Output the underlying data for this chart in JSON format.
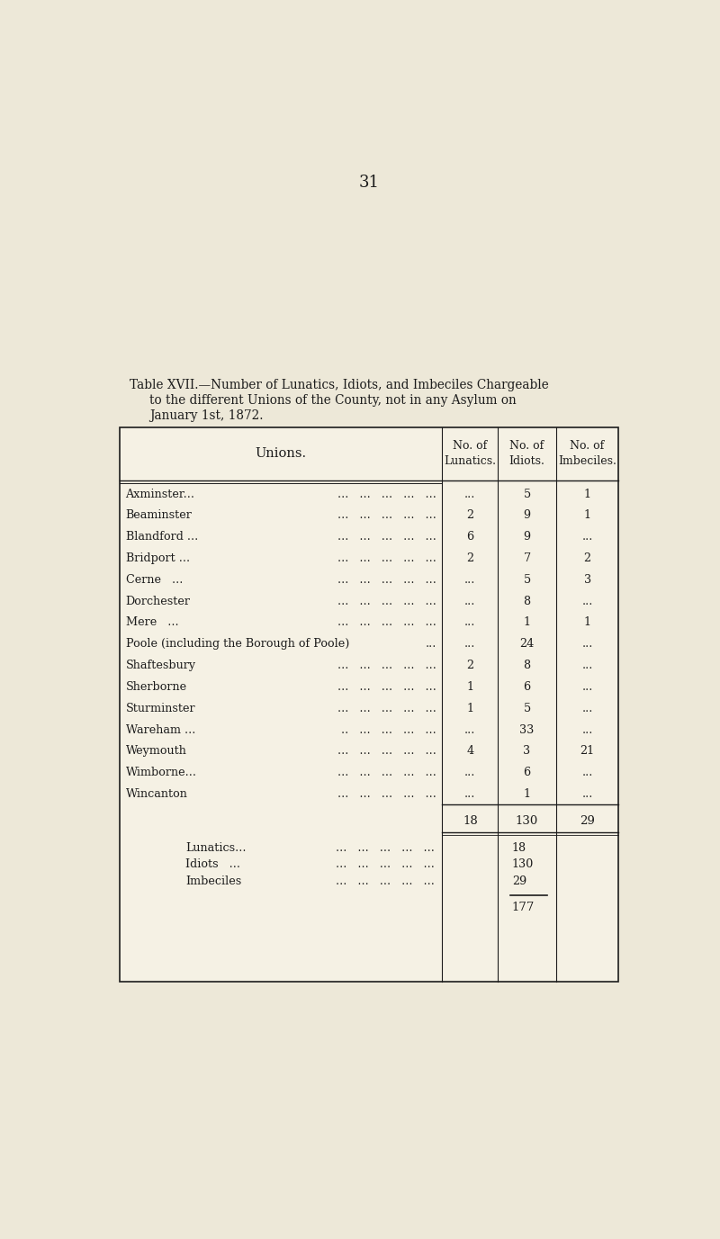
{
  "page_number": "31",
  "title_line1": "Table XVII.—Number of Lunatics, Idiots, and Imbeciles Chargeable",
  "title_line2": "to the different Unions of the County, not in any Asylum on",
  "title_line3": "January 1st, 1872.",
  "col_header_union": "Unions.",
  "col_header_lunatics": "No. of\nLunatics.",
  "col_header_idiots": "No. of\nIdiots.",
  "col_header_imbeciles": "No. of\nImbeciles.",
  "rows": [
    {
      "union": "Axminster...",
      "trail": "...   ...   ...   ...   ...",
      "lunatics": "...",
      "idiots": "5",
      "imbeciles": "1"
    },
    {
      "union": "Beaminster",
      "trail": "...   ...   ...   ...   ...",
      "lunatics": "2",
      "idiots": "9",
      "imbeciles": "1"
    },
    {
      "union": "Blandford ...",
      "trail": "...   ...   ...   ...   ...",
      "lunatics": "6",
      "idiots": "9",
      "imbeciles": "..."
    },
    {
      "union": "Bridport ...",
      "trail": "...   ...   ...   ...   ...",
      "lunatics": "2",
      "idiots": "7",
      "imbeciles": "2"
    },
    {
      "union": "Cerne   ...",
      "trail": "...   ...   ...   ...   ...",
      "lunatics": "...",
      "idiots": "5",
      "imbeciles": "3"
    },
    {
      "union": "Dorchester",
      "trail": "...   ...   ...   ...   ...",
      "lunatics": "...",
      "idiots": "8",
      "imbeciles": "..."
    },
    {
      "union": "Mere   ...",
      "trail": "...   ...   ...   ...   ...",
      "lunatics": "...",
      "idiots": "1",
      "imbeciles": "1"
    },
    {
      "union": "Poole (including the Borough of Poole)",
      "trail": "...",
      "lunatics": "...",
      "idiots": "24",
      "imbeciles": "..."
    },
    {
      "union": "Shaftesbury",
      "trail": "...   ...   ...   ...   ...",
      "lunatics": "2",
      "idiots": "8",
      "imbeciles": "..."
    },
    {
      "union": "Sherborne",
      "trail": "...   ...   ...   ...   ...",
      "lunatics": "1",
      "idiots": "6",
      "imbeciles": "..."
    },
    {
      "union": "Sturminster",
      "trail": "...   ...   ...   ...   ...",
      "lunatics": "1",
      "idiots": "5",
      "imbeciles": "..."
    },
    {
      "union": "Wareham ...",
      "trail": " ..   ...   ...   ...   ...",
      "lunatics": "...",
      "idiots": "33",
      "imbeciles": "..."
    },
    {
      "union": "Weymouth",
      "trail": "...   ...   ...   ...   ...",
      "lunatics": "4",
      "idiots": "3",
      "imbeciles": "21"
    },
    {
      "union": "Wimborne...",
      "trail": "...   ...   ...   ...   ...",
      "lunatics": "...",
      "idiots": "6",
      "imbeciles": "..."
    },
    {
      "union": "Wincanton",
      "trail": "...   ...   ...   ...   ...",
      "lunatics": "...",
      "idiots": "1",
      "imbeciles": "..."
    }
  ],
  "total_lunatics": "18",
  "total_idiots": "130",
  "total_imbeciles": "29",
  "summary_lines": [
    {
      "label": "Lunatics...",
      "dots6": "...   ...   ...   ...   ...",
      "value": "18"
    },
    {
      "label": "Idiots   ...",
      "dots6": "...   ...   ...   ...   ...",
      "value": "130"
    },
    {
      "label": "Imbeciles",
      "dots6": "...   ...   ...   ...   ...",
      "value": "29"
    }
  ],
  "grand_total": "177",
  "bg_color": "#ede8d8",
  "text_color": "#1c1c1c",
  "table_bg": "#f5f1e4"
}
